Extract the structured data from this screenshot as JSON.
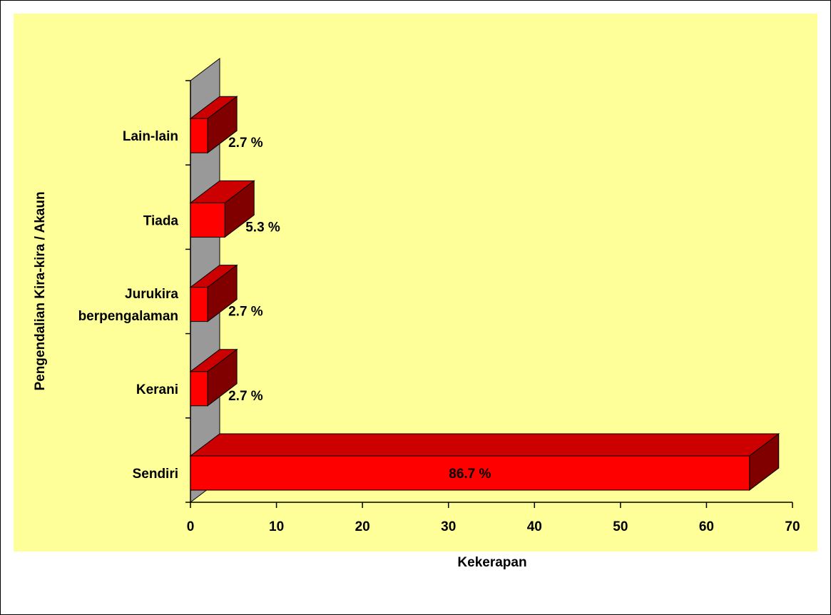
{
  "colors": {
    "plot_area": "#ffff99",
    "bar_front": "#ff0000",
    "bar_top": "#cc0000",
    "bar_side": "#800000",
    "wall": "#999999"
  },
  "chart_data": {
    "type": "bar",
    "orientation": "horizontal",
    "style": "3d",
    "categories": [
      "Sendiri",
      "Kerani",
      "Jurukira berpengalaman",
      "Tiada",
      "Lain-lain"
    ],
    "category_lines": [
      [
        "Sendiri"
      ],
      [
        "Kerani"
      ],
      [
        "Jurukira",
        "berpengalaman"
      ],
      [
        "Tiada"
      ],
      [
        "Lain-lain"
      ]
    ],
    "values": [
      65,
      2,
      2,
      4,
      2
    ],
    "data_labels": [
      "86.7 %",
      "2.7 %",
      "2.7 %",
      "5.3 %",
      "2.7 %"
    ],
    "xlabel": "Kekerapan",
    "ylabel": "Pengendalian Kira-kira / Akaun",
    "xlim": [
      0,
      70
    ],
    "xticks": [
      0,
      10,
      20,
      30,
      40,
      50,
      60,
      70
    ],
    "grid": false,
    "legend": "none"
  }
}
